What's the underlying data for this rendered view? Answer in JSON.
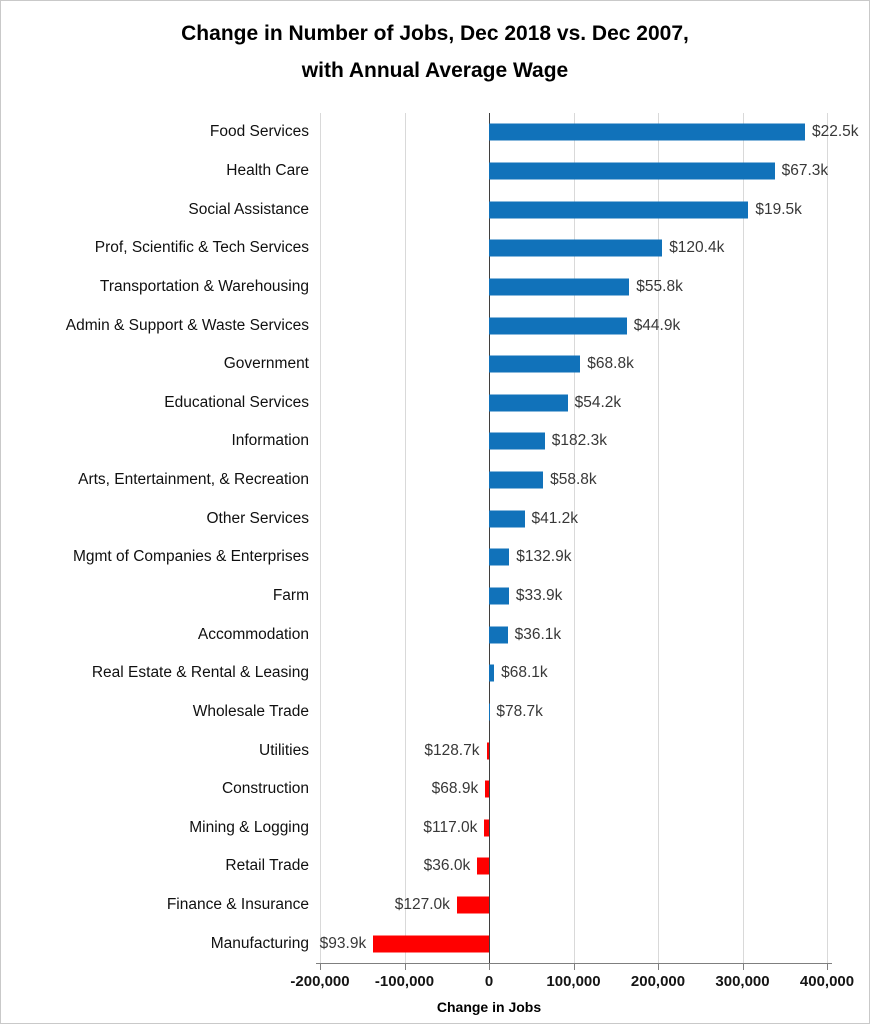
{
  "title": {
    "line1": "Change in Number of Jobs, Dec 2018 vs. Dec 2007,",
    "line2": "with Annual Average Wage"
  },
  "chart_data": {
    "type": "bar",
    "orientation": "horizontal",
    "title": "Change in Number of Jobs, Dec 2018 vs. Dec 2007, with Annual Average Wage",
    "xlabel": "Change in Jobs",
    "xlim": [
      -200000,
      400000
    ],
    "x_ticks": [
      -200000,
      -100000,
      0,
      100000,
      200000,
      300000,
      400000
    ],
    "x_tick_labels": [
      "-200,000",
      "-100,000",
      "0",
      "100,000",
      "200,000",
      "300,000",
      "400,000"
    ],
    "grid": true,
    "legend": "none",
    "categories": [
      "Food Services",
      "Health Care",
      "Social Assistance",
      "Prof, Scientific & Tech Services",
      "Transportation & Warehousing",
      "Admin & Support & Waste Services",
      "Government",
      "Educational Services",
      "Information",
      "Arts, Entertainment, & Recreation",
      "Other Services",
      "Mgmt of Companies & Enterprises",
      "Farm",
      "Accommodation",
      "Real Estate & Rental & Leasing",
      "Wholesale Trade",
      "Utilities",
      "Construction",
      "Mining & Logging",
      "Retail Trade",
      "Finance & Insurance",
      "Manufacturing"
    ],
    "series": [
      {
        "name": "Change in Jobs, Dec 2018 vs. Dec 2007",
        "values": [
          374000,
          338000,
          307000,
          205000,
          166000,
          163000,
          108000,
          93000,
          66000,
          64000,
          42000,
          24000,
          23500,
          22000,
          6000,
          500,
          -3000,
          -4500,
          -5500,
          -14000,
          -38000,
          -137000
        ]
      }
    ],
    "bar_annotations": [
      "$22.5k",
      "$67.3k",
      "$19.5k",
      "$120.4k",
      "$55.8k",
      "$44.9k",
      "$68.8k",
      "$54.2k",
      "$182.3k",
      "$58.8k",
      "$41.2k",
      "$132.9k",
      "$33.9k",
      "$36.1k",
      "$68.1k",
      "$78.7k",
      "$128.7k",
      "$68.9k",
      "$117.0k",
      "$36.0k",
      "$127.0k",
      "$93.9k"
    ],
    "colors": {
      "positive_bar": "#1172BA",
      "negative_bar": "#FF0000",
      "gridline": "#d9d9d9",
      "zero_axis": "#3f3f3f"
    }
  }
}
